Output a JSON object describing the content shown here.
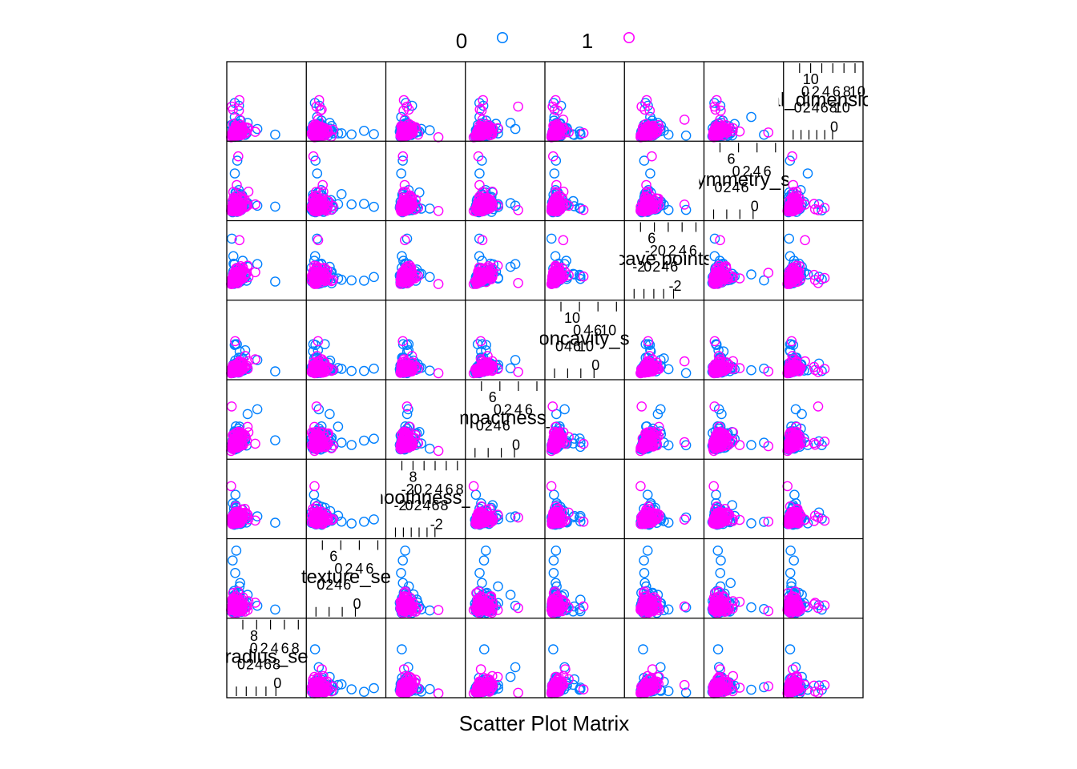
{
  "chart_data": {
    "type": "scatter",
    "title": "",
    "xlabel": "Scatter Plot Matrix",
    "ylabel": "",
    "legend": {
      "placement": "top",
      "entries": [
        "0",
        "1"
      ]
    },
    "series": [
      {
        "name": "0",
        "color": "#0080ff",
        "marker": "open-circle"
      },
      {
        "name": "1",
        "color": "#ff00ff",
        "marker": "open-circle"
      }
    ],
    "grid": false,
    "variables": [
      {
        "label": "radius_se",
        "range": [
          -1,
          10
        ],
        "ticks": [
          "0",
          "2",
          "4",
          "6",
          "8"
        ]
      },
      {
        "label": "texture_se",
        "range": [
          -1,
          7.5
        ],
        "ticks": [
          "0",
          "2",
          "4",
          "6"
        ]
      },
      {
        "label": "smoothness_se",
        "range": [
          -2.5,
          9
        ],
        "ticks": [
          "-2",
          "0",
          "2",
          "4",
          "6",
          "8"
        ]
      },
      {
        "label": "compactness_se",
        "range": [
          -1.5,
          7
        ],
        "ticks": [
          "0",
          "2",
          "4",
          "6"
        ]
      },
      {
        "label": "concavity_se",
        "range": [
          -1.5,
          12.5
        ],
        "ticks": [
          "0",
          "4",
          "6",
          "10"
        ]
      },
      {
        "label": "concave.points_se",
        "range": [
          -2.5,
          7
        ],
        "ticks": [
          "-2",
          "0",
          "2",
          "4",
          "6"
        ]
      },
      {
        "label": "symmetry_se",
        "range": [
          -1.5,
          8
        ],
        "ticks": [
          "0",
          "2",
          "4",
          "6"
        ]
      },
      {
        "label": "fractal_dimension_se",
        "range": [
          -1,
          11.5
        ],
        "ticks": [
          "0",
          "2",
          "4",
          "6",
          "8",
          "10"
        ]
      }
    ]
  }
}
